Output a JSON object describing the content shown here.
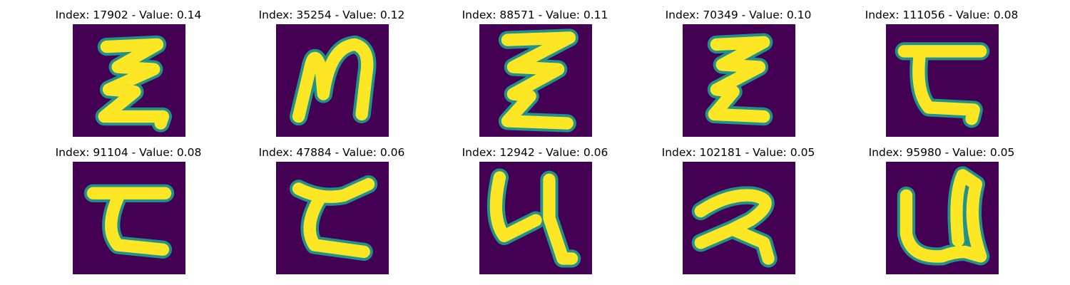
{
  "panels": [
    {
      "title": "Index: 17902 - Value: 0.14",
      "glyph": "xi-small"
    },
    {
      "title": "Index: 35254 - Value: 0.12",
      "glyph": "n-curl"
    },
    {
      "title": "Index: 88571 - Value: 0.11",
      "glyph": "xi"
    },
    {
      "title": "Index: 70349 - Value: 0.10",
      "glyph": "xi-thin"
    },
    {
      "title": "Index: 111056 - Value: 0.08",
      "glyph": "bar-z"
    },
    {
      "title": "Index: 91104 - Value: 0.08",
      "glyph": "c-bar"
    },
    {
      "title": "Index: 47884 - Value: 0.06",
      "glyph": "c-bar-2"
    },
    {
      "title": "Index: 12942 - Value: 0.06",
      "glyph": "four-hook"
    },
    {
      "title": "Index: 102181 - Value: 0.05",
      "glyph": "two"
    },
    {
      "title": "Index: 95980 - Value: 0.05",
      "glyph": "u-shape"
    }
  ],
  "colors": {
    "background": "#440154",
    "stroke_core": "#fde725",
    "stroke_edge": "#21918c"
  }
}
